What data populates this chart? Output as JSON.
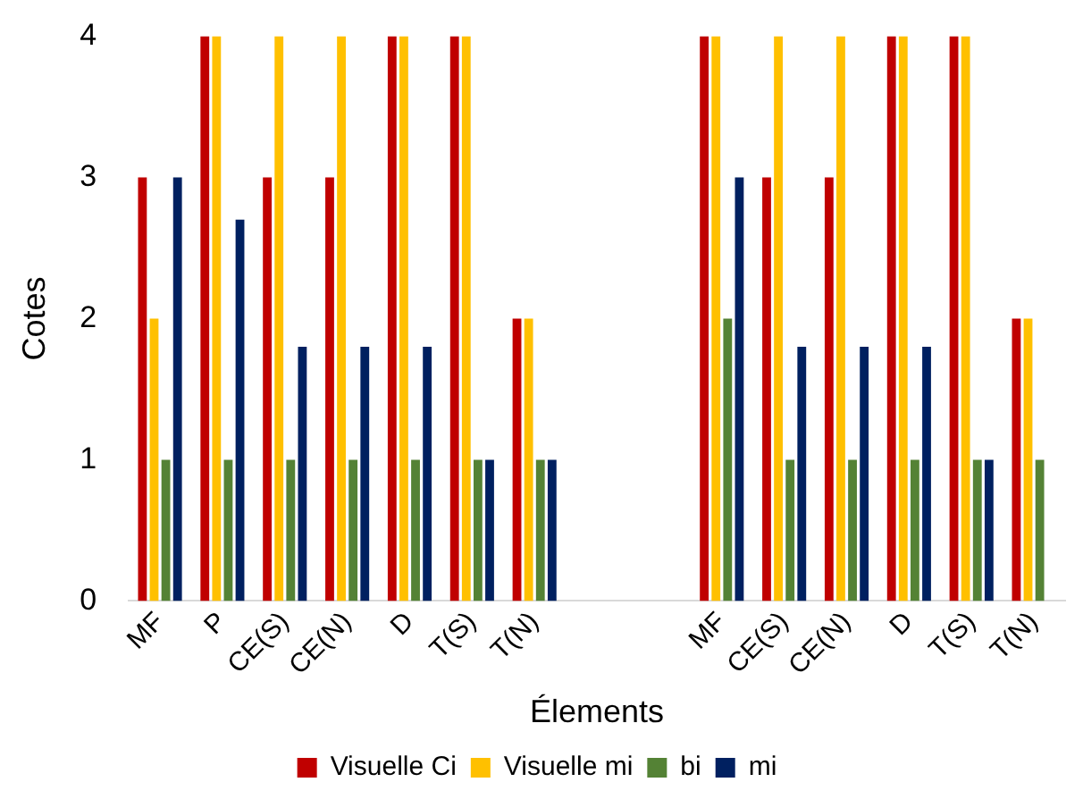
{
  "chart_data": {
    "type": "bar",
    "xlabel": "Élements",
    "ylabel": "Cotes",
    "categories": [
      "MF",
      "P",
      "CE(S)",
      "CE(N)",
      "D",
      "T(S)",
      "T(N)",
      null,
      null,
      "MF",
      "CE(S)",
      "CE(N)",
      "D",
      "T(S)",
      "T(N)"
    ],
    "series": [
      {
        "name": "Visuelle Ci",
        "color": "#c00000",
        "values": [
          3,
          4,
          3,
          3,
          4,
          4,
          2,
          null,
          null,
          4,
          3,
          3,
          4,
          4,
          2
        ]
      },
      {
        "name": "Visuelle mi",
        "color": "#ffc000",
        "values": [
          2,
          4,
          4,
          4,
          4,
          4,
          2,
          null,
          null,
          4,
          4,
          4,
          4,
          4,
          2
        ]
      },
      {
        "name": "bi",
        "color": "#548235",
        "values": [
          1,
          1,
          1,
          1,
          1,
          1,
          1,
          null,
          null,
          2,
          1,
          1,
          1,
          1,
          1
        ]
      },
      {
        "name": "mi",
        "color": "#002060",
        "values": [
          3,
          2.7,
          1.8,
          1.8,
          1.8,
          1,
          1,
          null,
          null,
          3,
          1.8,
          1.8,
          1.8,
          1,
          null
        ]
      }
    ],
    "ylim": [
      0,
      4
    ],
    "yticks": [
      0,
      1,
      2,
      3,
      4
    ],
    "grid": false,
    "legend": "bottom"
  }
}
